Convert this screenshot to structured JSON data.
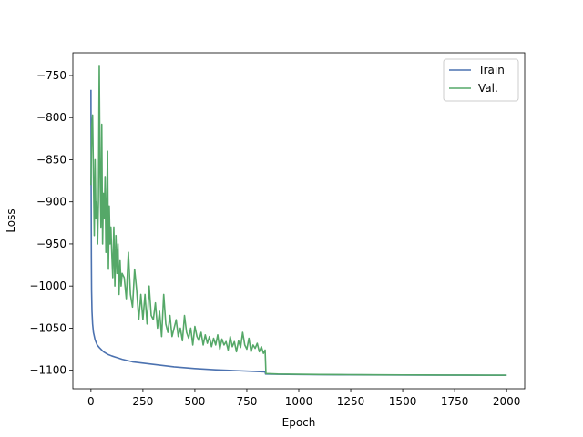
{
  "chart_data": {
    "type": "line",
    "title": "",
    "xlabel": "Epoch",
    "ylabel": "Loss",
    "xlim": [
      -87,
      2087
    ],
    "ylim": [
      -1122,
      -723
    ],
    "xticks": [
      0,
      250,
      500,
      750,
      1000,
      1250,
      1500,
      1750,
      2000
    ],
    "xtick_labels": [
      "0",
      "250",
      "500",
      "750",
      "1000",
      "1250",
      "1500",
      "1750",
      "2000"
    ],
    "yticks": [
      -750,
      -800,
      -850,
      -900,
      -950,
      -1000,
      -1050,
      -1100
    ],
    "ytick_labels": [
      "−750",
      "−800",
      "−850",
      "−900",
      "−950",
      "−1000",
      "−1050",
      "−1100"
    ],
    "grid": false,
    "legend": {
      "position": "top-right"
    },
    "series": [
      {
        "name": "Train",
        "color": "#4c72b0",
        "x": [
          0,
          1,
          2,
          3,
          5,
          8,
          12,
          20,
          30,
          40,
          60,
          80,
          100,
          150,
          200,
          300,
          400,
          500,
          600,
          700,
          800,
          838,
          840,
          900,
          1000,
          1200,
          1500,
          1800,
          2000
        ],
        "y": [
          -767,
          -885,
          -965,
          -1005,
          -1030,
          -1045,
          -1055,
          -1064,
          -1070,
          -1073,
          -1078,
          -1081,
          -1083,
          -1087,
          -1090,
          -1093,
          -1096,
          -1098,
          -1099.5,
          -1100.5,
          -1101.5,
          -1102,
          -1104.5,
          -1104.8,
          -1105.1,
          -1105.4,
          -1105.7,
          -1105.9,
          -1106
        ]
      },
      {
        "name": "Val.",
        "color": "#55a868",
        "x": [
          0,
          4,
          8,
          12,
          16,
          20,
          24,
          28,
          32,
          36,
          40,
          44,
          48,
          52,
          56,
          60,
          64,
          68,
          72,
          76,
          80,
          84,
          88,
          92,
          96,
          100,
          105,
          110,
          115,
          120,
          125,
          130,
          135,
          140,
          145,
          150,
          160,
          170,
          180,
          190,
          200,
          210,
          220,
          230,
          240,
          250,
          260,
          270,
          280,
          290,
          300,
          310,
          320,
          330,
          340,
          350,
          360,
          370,
          380,
          390,
          400,
          410,
          420,
          430,
          440,
          450,
          460,
          470,
          480,
          490,
          500,
          510,
          520,
          530,
          540,
          550,
          560,
          570,
          580,
          590,
          600,
          610,
          620,
          630,
          640,
          650,
          660,
          670,
          680,
          690,
          700,
          710,
          720,
          730,
          740,
          750,
          760,
          770,
          780,
          790,
          800,
          810,
          820,
          830,
          838,
          842,
          900,
          1000,
          1100,
          1200,
          1300,
          1400,
          1500,
          1600,
          1700,
          1800,
          1900,
          2000
        ],
        "y": [
          -880,
          -810,
          -797,
          -870,
          -940,
          -850,
          -920,
          -900,
          -950,
          -900,
          -738,
          -870,
          -930,
          -808,
          -950,
          -890,
          -920,
          -870,
          -960,
          -900,
          -840,
          -980,
          -905,
          -950,
          -930,
          -960,
          -990,
          -930,
          -1000,
          -940,
          -985,
          -950,
          -1010,
          -970,
          -1000,
          -985,
          -990,
          -1015,
          -960,
          -1010,
          -1025,
          -980,
          -1005,
          -1040,
          -1010,
          -1040,
          -1010,
          -1045,
          -1000,
          -1035,
          -1040,
          -1020,
          -1050,
          -1030,
          -1060,
          -1010,
          -1045,
          -1055,
          -1035,
          -1060,
          -1050,
          -1040,
          -1060,
          -1050,
          -1065,
          -1035,
          -1055,
          -1062,
          -1050,
          -1070,
          -1048,
          -1060,
          -1065,
          -1055,
          -1070,
          -1058,
          -1068,
          -1060,
          -1072,
          -1062,
          -1070,
          -1058,
          -1075,
          -1063,
          -1070,
          -1066,
          -1076,
          -1060,
          -1072,
          -1066,
          -1078,
          -1065,
          -1073,
          -1055,
          -1070,
          -1075,
          -1062,
          -1078,
          -1070,
          -1074,
          -1068,
          -1078,
          -1072,
          -1080,
          -1076,
          -1104,
          -1104.5,
          -1104.8,
          -1105,
          -1105.2,
          -1105.3,
          -1105.4,
          -1105.5,
          -1105.6,
          -1105.7,
          -1105.7,
          -1105.8,
          -1105.8
        ]
      }
    ]
  }
}
